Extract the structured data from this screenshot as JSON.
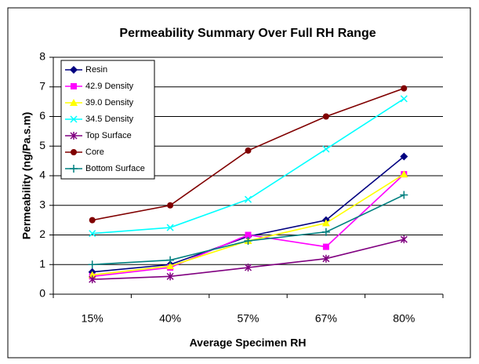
{
  "chart_data": {
    "type": "line",
    "title": "Permeability Summary Over Full RH Range",
    "xlabel": "Average Specimen RH",
    "ylabel": "Permeability (ng/Pa.s.m)",
    "categories": [
      "15%",
      "40%",
      "57%",
      "67%",
      "80%"
    ],
    "ylim": [
      0,
      8
    ],
    "yticks": [
      0,
      1,
      2,
      3,
      4,
      5,
      6,
      7,
      8
    ],
    "grid": true,
    "legend": "upper left",
    "series": [
      {
        "name": "Resin",
        "color": "#000080",
        "marker": "diamond",
        "values": [
          0.75,
          1.0,
          1.95,
          2.5,
          4.65
        ]
      },
      {
        "name": "42.9 Density",
        "color": "#ff00ff",
        "marker": "square",
        "values": [
          0.6,
          0.9,
          2.0,
          1.6,
          4.05
        ]
      },
      {
        "name": "39.0 Density",
        "color": "#ffff00",
        "marker": "triangle",
        "values": [
          0.65,
          0.95,
          1.8,
          2.4,
          4.05
        ]
      },
      {
        "name": "34.5 Density",
        "color": "#00ffff",
        "marker": "x",
        "values": [
          2.05,
          2.25,
          3.2,
          4.9,
          6.6
        ]
      },
      {
        "name": "Top Surface",
        "color": "#800080",
        "marker": "star",
        "values": [
          0.5,
          0.6,
          0.9,
          1.2,
          1.85
        ]
      },
      {
        "name": "Core",
        "color": "#800000",
        "marker": "circle",
        "values": [
          2.5,
          3.0,
          4.85,
          6.0,
          6.95
        ]
      },
      {
        "name": "Bottom Surface",
        "color": "#008080",
        "marker": "plus",
        "values": [
          1.0,
          1.15,
          1.8,
          2.1,
          3.35
        ]
      }
    ]
  }
}
